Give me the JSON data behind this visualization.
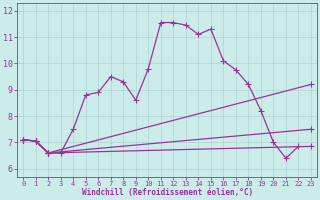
{
  "xlabel": "Windchill (Refroidissement éolien,°C)",
  "bg_color": "#ccecea",
  "line_color": "#993399",
  "grid_color": "#aad4d2",
  "xlim": [
    -0.5,
    23.5
  ],
  "ylim": [
    5.7,
    12.3
  ],
  "yticks": [
    6,
    7,
    8,
    9,
    10,
    11,
    12
  ],
  "xticks": [
    0,
    1,
    2,
    3,
    4,
    5,
    6,
    7,
    8,
    9,
    10,
    11,
    12,
    13,
    14,
    15,
    16,
    17,
    18,
    19,
    20,
    21,
    22,
    23
  ],
  "series_main": {
    "x": [
      0,
      1,
      2,
      3,
      4,
      5,
      6,
      7,
      8,
      9,
      10,
      11,
      12,
      13,
      14,
      15,
      16,
      17,
      18,
      19,
      20,
      21,
      22
    ],
    "y": [
      7.1,
      7.05,
      6.6,
      6.6,
      7.5,
      8.8,
      8.9,
      9.5,
      9.3,
      8.6,
      9.8,
      11.55,
      11.55,
      11.45,
      11.1,
      11.3,
      10.1,
      9.75,
      9.2,
      8.2,
      7.0,
      6.4,
      6.85
    ]
  },
  "series_fan1": {
    "x": [
      0,
      1,
      2,
      23
    ],
    "y": [
      7.1,
      7.05,
      6.6,
      9.2
    ]
  },
  "series_fan2": {
    "x": [
      0,
      1,
      2,
      23
    ],
    "y": [
      7.1,
      7.05,
      6.6,
      7.5
    ]
  },
  "series_fan3": {
    "x": [
      0,
      1,
      2,
      23
    ],
    "y": [
      7.1,
      7.05,
      6.6,
      6.85
    ]
  }
}
